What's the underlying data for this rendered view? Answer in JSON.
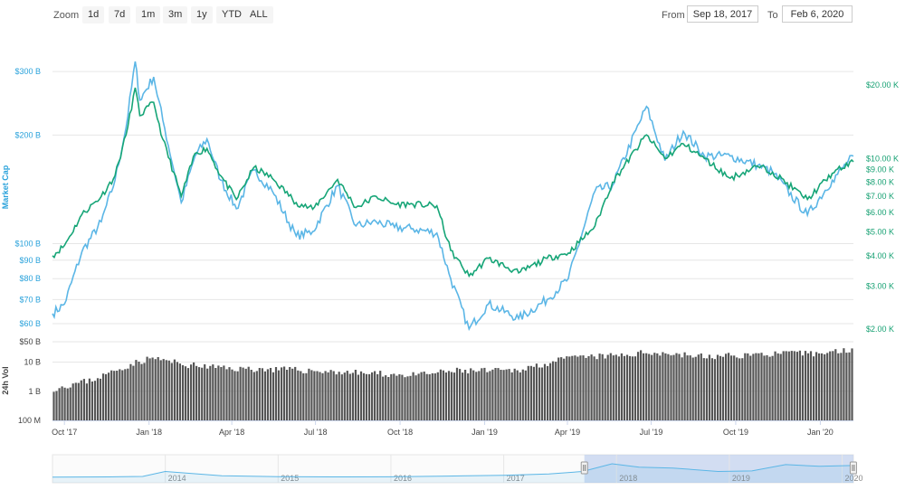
{
  "toolbar": {
    "zoom_label": "Zoom",
    "zoom_buttons": [
      "1d",
      "7d",
      "1m",
      "3m",
      "1y",
      "YTD",
      "ALL"
    ],
    "from_label": "From",
    "from_value": "Sep 18, 2017",
    "to_label": "To",
    "to_value": "Feb 6, 2020"
  },
  "colors": {
    "market_cap": "#5bb6e6",
    "price": "#16a577",
    "volume": "#555555",
    "grid": "#e6e6e6",
    "navigator_fill": "#b7c9ec"
  },
  "chart_data": [
    {
      "type": "line",
      "ylabel": "Market Cap",
      "yscale": "log",
      "ylim": [
        56,
        320
      ],
      "xlim": [
        "2017-09-18",
        "2020-02-06"
      ],
      "left_ticks": [
        "$300 B",
        "$200 B",
        "$100 B",
        "$90 B",
        "$80 B",
        "$70 B",
        "$60 B"
      ],
      "left_tick_values": [
        300,
        200,
        100,
        90,
        80,
        70,
        60
      ],
      "right_ticks": [
        "$20.00 K",
        "$10.00 K",
        "$9.00 K",
        "$8.00 K",
        "$7.00 K",
        "$6.00 K",
        "$5.00 K",
        "$4.00 K",
        "$3.00 K",
        "$2.00 K"
      ],
      "right_tick_values": [
        20000,
        10000,
        9000,
        8000,
        7000,
        6000,
        5000,
        4000,
        3000,
        2000
      ],
      "right_ylim": [
        1900,
        25000
      ],
      "x_ticks": [
        "Oct '17",
        "Jan '18",
        "Apr '18",
        "Jul '18",
        "Oct '18",
        "Jan '19",
        "Apr '19",
        "Jul '19",
        "Oct '19",
        "Jan '20"
      ],
      "x_tick_dates": [
        "2017-10-01",
        "2018-01-01",
        "2018-04-01",
        "2018-07-01",
        "2018-10-01",
        "2019-01-01",
        "2019-04-01",
        "2019-07-01",
        "2019-10-01",
        "2020-01-01"
      ],
      "series": [
        {
          "name": "Market Cap",
          "unit": "B",
          "x": [
            "2017-09-18",
            "2017-10-01",
            "2017-10-20",
            "2017-11-10",
            "2017-11-25",
            "2017-12-07",
            "2017-12-17",
            "2017-12-22",
            "2018-01-06",
            "2018-01-16",
            "2018-02-05",
            "2018-02-20",
            "2018-03-05",
            "2018-03-20",
            "2018-04-06",
            "2018-04-25",
            "2018-05-15",
            "2018-06-10",
            "2018-06-28",
            "2018-07-25",
            "2018-08-14",
            "2018-09-05",
            "2018-09-25",
            "2018-10-15",
            "2018-11-10",
            "2018-11-25",
            "2018-12-15",
            "2019-01-05",
            "2019-02-07",
            "2019-03-10",
            "2019-04-02",
            "2019-05-01",
            "2019-05-20",
            "2019-06-26",
            "2019-07-16",
            "2019-08-05",
            "2019-08-28",
            "2019-09-25",
            "2019-10-25",
            "2019-11-10",
            "2019-12-18",
            "2020-01-14",
            "2020-02-06"
          ],
          "values": [
            64,
            68,
            95,
            115,
            150,
            210,
            320,
            250,
            290,
            220,
            130,
            175,
            195,
            150,
            125,
            160,
            140,
            105,
            108,
            145,
            112,
            115,
            111,
            110,
            107,
            80,
            58,
            68,
            62,
            70,
            80,
            140,
            145,
            240,
            170,
            205,
            175,
            175,
            165,
            158,
            120,
            150,
            175
          ]
        },
        {
          "name": "Price",
          "unit": "USD",
          "x": [
            "2017-09-18",
            "2017-10-01",
            "2017-10-20",
            "2017-11-10",
            "2017-11-25",
            "2017-12-07",
            "2017-12-17",
            "2017-12-22",
            "2018-01-06",
            "2018-01-16",
            "2018-02-05",
            "2018-02-20",
            "2018-03-05",
            "2018-03-20",
            "2018-04-06",
            "2018-04-25",
            "2018-05-15",
            "2018-06-10",
            "2018-06-28",
            "2018-07-25",
            "2018-08-14",
            "2018-09-05",
            "2018-09-25",
            "2018-10-15",
            "2018-11-10",
            "2018-11-25",
            "2018-12-15",
            "2019-01-05",
            "2019-02-07",
            "2019-03-10",
            "2019-04-02",
            "2019-05-01",
            "2019-05-20",
            "2019-06-26",
            "2019-07-16",
            "2019-08-05",
            "2019-08-28",
            "2019-09-25",
            "2019-10-25",
            "2019-11-10",
            "2019-12-18",
            "2020-01-14",
            "2020-02-06"
          ],
          "values": [
            4000,
            4400,
            5900,
            7000,
            8500,
            12500,
            19500,
            15000,
            17000,
            12000,
            7000,
            10500,
            11000,
            8500,
            6800,
            9200,
            8300,
            6600,
            6200,
            8200,
            6300,
            7000,
            6500,
            6500,
            6400,
            4200,
            3300,
            3900,
            3400,
            3900,
            4100,
            5300,
            8000,
            12500,
            10000,
            11500,
            10000,
            8300,
            9300,
            8800,
            6800,
            8700,
            9700
          ]
        }
      ]
    },
    {
      "type": "bar",
      "ylabel": "24h Vol",
      "yscale": "log",
      "ylim": [
        0.1,
        50
      ],
      "y_ticks": [
        "$50 B",
        "10 B",
        "1 B",
        "100 M"
      ],
      "y_tick_values": [
        50,
        10,
        1,
        0.1
      ],
      "x": [
        "2017-09-18",
        "2017-11-01",
        "2017-12-15",
        "2018-01-05",
        "2018-02-10",
        "2018-04-01",
        "2018-06-01",
        "2018-08-01",
        "2018-10-15",
        "2018-12-01",
        "2019-02-01",
        "2019-04-05",
        "2019-06-01",
        "2019-07-01",
        "2019-09-01",
        "2019-11-01",
        "2020-01-01",
        "2020-02-06"
      ],
      "values": [
        1.2,
        2.5,
        9,
        14,
        8,
        6,
        5.5,
        4.5,
        3.5,
        5,
        5,
        14,
        17,
        22,
        15,
        19,
        20,
        28
      ]
    },
    {
      "type": "area",
      "ylabel": "",
      "x_ticks": [
        "2014",
        "2015",
        "2016",
        "2017",
        "2018",
        "2019",
        "2020"
      ],
      "x": [
        2013.0,
        2013.5,
        2013.8,
        2014.0,
        2014.5,
        2015.0,
        2015.5,
        2016.0,
        2016.5,
        2017.0,
        2017.4,
        2017.7,
        2017.96,
        2018.2,
        2018.5,
        2018.9,
        2019.2,
        2019.5,
        2019.8,
        2020.1
      ],
      "values": [
        1.2,
        1.3,
        1.6,
        4.5,
        2.0,
        1.5,
        1.3,
        1.4,
        1.8,
        2.2,
        3.0,
        4.5,
        9.0,
        7.0,
        6.5,
        4.5,
        4.8,
        8.5,
        7.5,
        8.0
      ],
      "selection": [
        "2017-09-18",
        "2020-02-06"
      ]
    }
  ]
}
